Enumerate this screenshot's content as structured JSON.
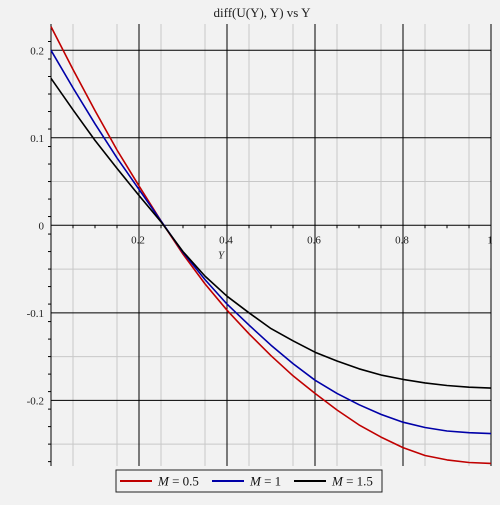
{
  "chart_data": {
    "type": "line",
    "title": "diff(U(Y), Y) vs Y",
    "xlabel": "Y",
    "ylabel": "",
    "xlim": [
      0,
      1
    ],
    "ylim": [
      -0.275,
      0.23
    ],
    "xticks": [
      0.2,
      0.4,
      0.6,
      0.8,
      1
    ],
    "xtick_labels": [
      "0.2",
      "0.4",
      "0.6",
      "0.8",
      "1"
    ],
    "yticks": [
      0.2,
      0.1,
      0,
      -0.1,
      -0.2
    ],
    "ytick_labels": [
      "0.2",
      "0.1",
      "0",
      "-0.1",
      "-0.2"
    ],
    "grid": true,
    "legend_position": "bottom",
    "series": [
      {
        "name": "M = 0.5",
        "legend_prefix": "M",
        "legend_value": "= 0.5",
        "color": "#c00000",
        "x": [
          0,
          0.05,
          0.1,
          0.15,
          0.2,
          0.25,
          0.3,
          0.35,
          0.4,
          0.45,
          0.5,
          0.55,
          0.6,
          0.65,
          0.7,
          0.75,
          0.8,
          0.85,
          0.9,
          0.95,
          1
        ],
        "y": [
          0.227,
          0.178,
          0.131,
          0.086,
          0.045,
          0.005,
          -0.033,
          -0.067,
          -0.097,
          -0.124,
          -0.149,
          -0.172,
          -0.192,
          -0.211,
          -0.228,
          -0.242,
          -0.254,
          -0.263,
          -0.268,
          -0.271,
          -0.272
        ]
      },
      {
        "name": "M = 1",
        "legend_prefix": "M",
        "legend_value": "= 1",
        "color": "#0000a8",
        "x": [
          0,
          0.05,
          0.1,
          0.15,
          0.2,
          0.25,
          0.3,
          0.35,
          0.4,
          0.45,
          0.5,
          0.55,
          0.6,
          0.65,
          0.7,
          0.75,
          0.8,
          0.85,
          0.9,
          0.95,
          1
        ],
        "y": [
          0.2,
          0.157,
          0.116,
          0.077,
          0.041,
          0.005,
          -0.031,
          -0.062,
          -0.09,
          -0.114,
          -0.137,
          -0.158,
          -0.177,
          -0.192,
          -0.205,
          -0.216,
          -0.225,
          -0.231,
          -0.235,
          -0.237,
          -0.238
        ]
      },
      {
        "name": "M = 1.5",
        "legend_prefix": "M",
        "legend_value": "= 1.5",
        "color": "#000000",
        "x": [
          0,
          0.05,
          0.1,
          0.15,
          0.2,
          0.25,
          0.3,
          0.35,
          0.4,
          0.45,
          0.5,
          0.55,
          0.6,
          0.65,
          0.7,
          0.75,
          0.8,
          0.85,
          0.9,
          0.95,
          1
        ],
        "y": [
          0.168,
          0.132,
          0.097,
          0.065,
          0.034,
          0.004,
          -0.03,
          -0.058,
          -0.081,
          -0.1,
          -0.118,
          -0.132,
          -0.145,
          -0.155,
          -0.164,
          -0.171,
          -0.176,
          -0.18,
          -0.183,
          -0.185,
          -0.186
        ]
      }
    ]
  }
}
